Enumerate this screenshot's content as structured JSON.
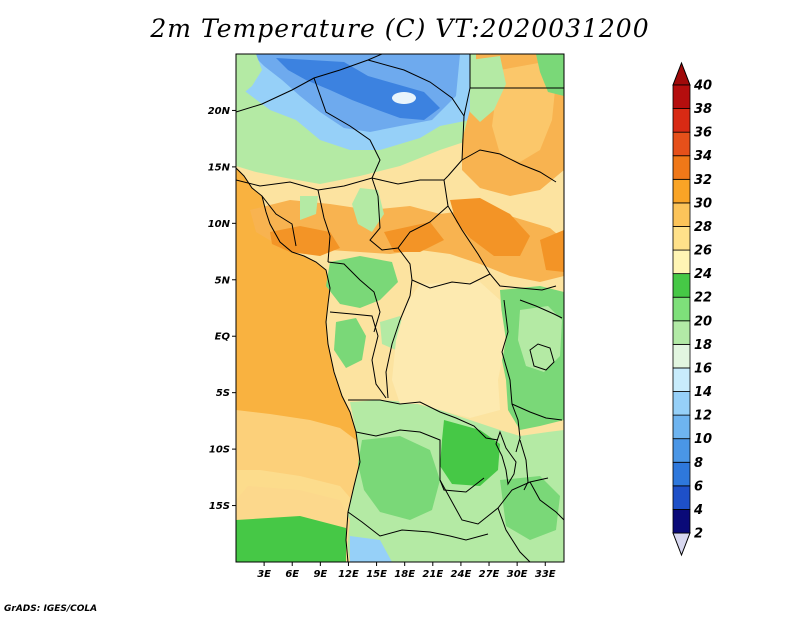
{
  "title": "2m Temperature (C) VT:2020031200",
  "credit": "GrADS: IGES/COLA",
  "map": {
    "lon_range": [
      0,
      35
    ],
    "lat_range": [
      -20,
      25
    ],
    "lat_ticks": [
      {
        "value": 20,
        "label": "20N"
      },
      {
        "value": 15,
        "label": "15N"
      },
      {
        "value": 10,
        "label": "10N"
      },
      {
        "value": 5,
        "label": "5N"
      },
      {
        "value": 0,
        "label": "EQ"
      },
      {
        "value": -5,
        "label": "5S"
      },
      {
        "value": -10,
        "label": "10S"
      },
      {
        "value": -15,
        "label": "15S"
      }
    ],
    "lon_ticks": [
      {
        "value": 3,
        "label": "3E"
      },
      {
        "value": 6,
        "label": "6E"
      },
      {
        "value": 9,
        "label": "9E"
      },
      {
        "value": 12,
        "label": "12E"
      },
      {
        "value": 15,
        "label": "15E"
      },
      {
        "value": 18,
        "label": "18E"
      },
      {
        "value": 21,
        "label": "21E"
      },
      {
        "value": 24,
        "label": "24E"
      },
      {
        "value": 27,
        "label": "27E"
      },
      {
        "value": 30,
        "label": "30E"
      },
      {
        "value": 33,
        "label": "33E"
      }
    ]
  },
  "colorbar": {
    "levels": [
      2,
      4,
      6,
      8,
      10,
      12,
      14,
      16,
      18,
      20,
      22,
      24,
      26,
      28,
      30,
      32,
      34,
      36,
      38,
      40
    ],
    "colors": [
      "#0a0a78",
      "#1e50c8",
      "#2e78dc",
      "#4a96e6",
      "#6eb4f0",
      "#96d0f8",
      "#c8ecfc",
      "#e2f6e0",
      "#b2eaa6",
      "#7ee07a",
      "#46c846",
      "#fff5b4",
      "#ffe18a",
      "#fcc45a",
      "#f9a426",
      "#f07818",
      "#e6501a",
      "#d82a14",
      "#b40e0e"
    ],
    "under_color": "#d8d8f0",
    "over_color": "#a00a0a"
  },
  "field_colors": {
    "ocean": "#f9b240",
    "ocean_south": "#fcd07a",
    "land_default": "#fce3a0",
    "warm": "#f8b350",
    "hot": "#f39426",
    "green_light": "#b4eaa4",
    "green_mid": "#7ad878",
    "green_dark": "#46c846",
    "blue_light": "#96d0f8",
    "blue_mid": "#6eaaee",
    "blue_dark": "#3c82e0"
  }
}
